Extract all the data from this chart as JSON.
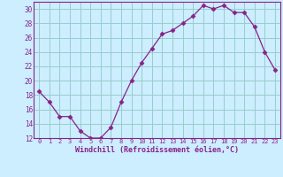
{
  "x": [
    0,
    1,
    2,
    3,
    4,
    5,
    6,
    7,
    8,
    9,
    10,
    11,
    12,
    13,
    14,
    15,
    16,
    17,
    18,
    19,
    20,
    21,
    22,
    23
  ],
  "y": [
    18.5,
    17,
    15,
    15,
    13,
    12,
    12,
    13.5,
    17,
    20,
    22.5,
    24.5,
    26.5,
    27,
    28,
    29,
    30.5,
    30,
    30.5,
    29.5,
    29.5,
    27.5,
    24,
    21.5
  ],
  "line_color": "#882288",
  "marker": "D",
  "marker_size": 2.5,
  "bg_color": "#cceeff",
  "grid_color": "#99cccc",
  "xlabel": "Windchill (Refroidissement éolien,°C)",
  "ylim": [
    12,
    31
  ],
  "xlim_min": -0.5,
  "xlim_max": 23.5,
  "yticks": [
    12,
    14,
    16,
    18,
    20,
    22,
    24,
    26,
    28,
    30
  ],
  "xticks": [
    0,
    1,
    2,
    3,
    4,
    5,
    6,
    7,
    8,
    9,
    10,
    11,
    12,
    13,
    14,
    15,
    16,
    17,
    18,
    19,
    20,
    21,
    22,
    23
  ],
  "xlabel_color": "#882288",
  "tick_color": "#882288",
  "tick_fontsize": 5.0,
  "ytick_fontsize": 5.5,
  "xlabel_fontsize": 6.0
}
